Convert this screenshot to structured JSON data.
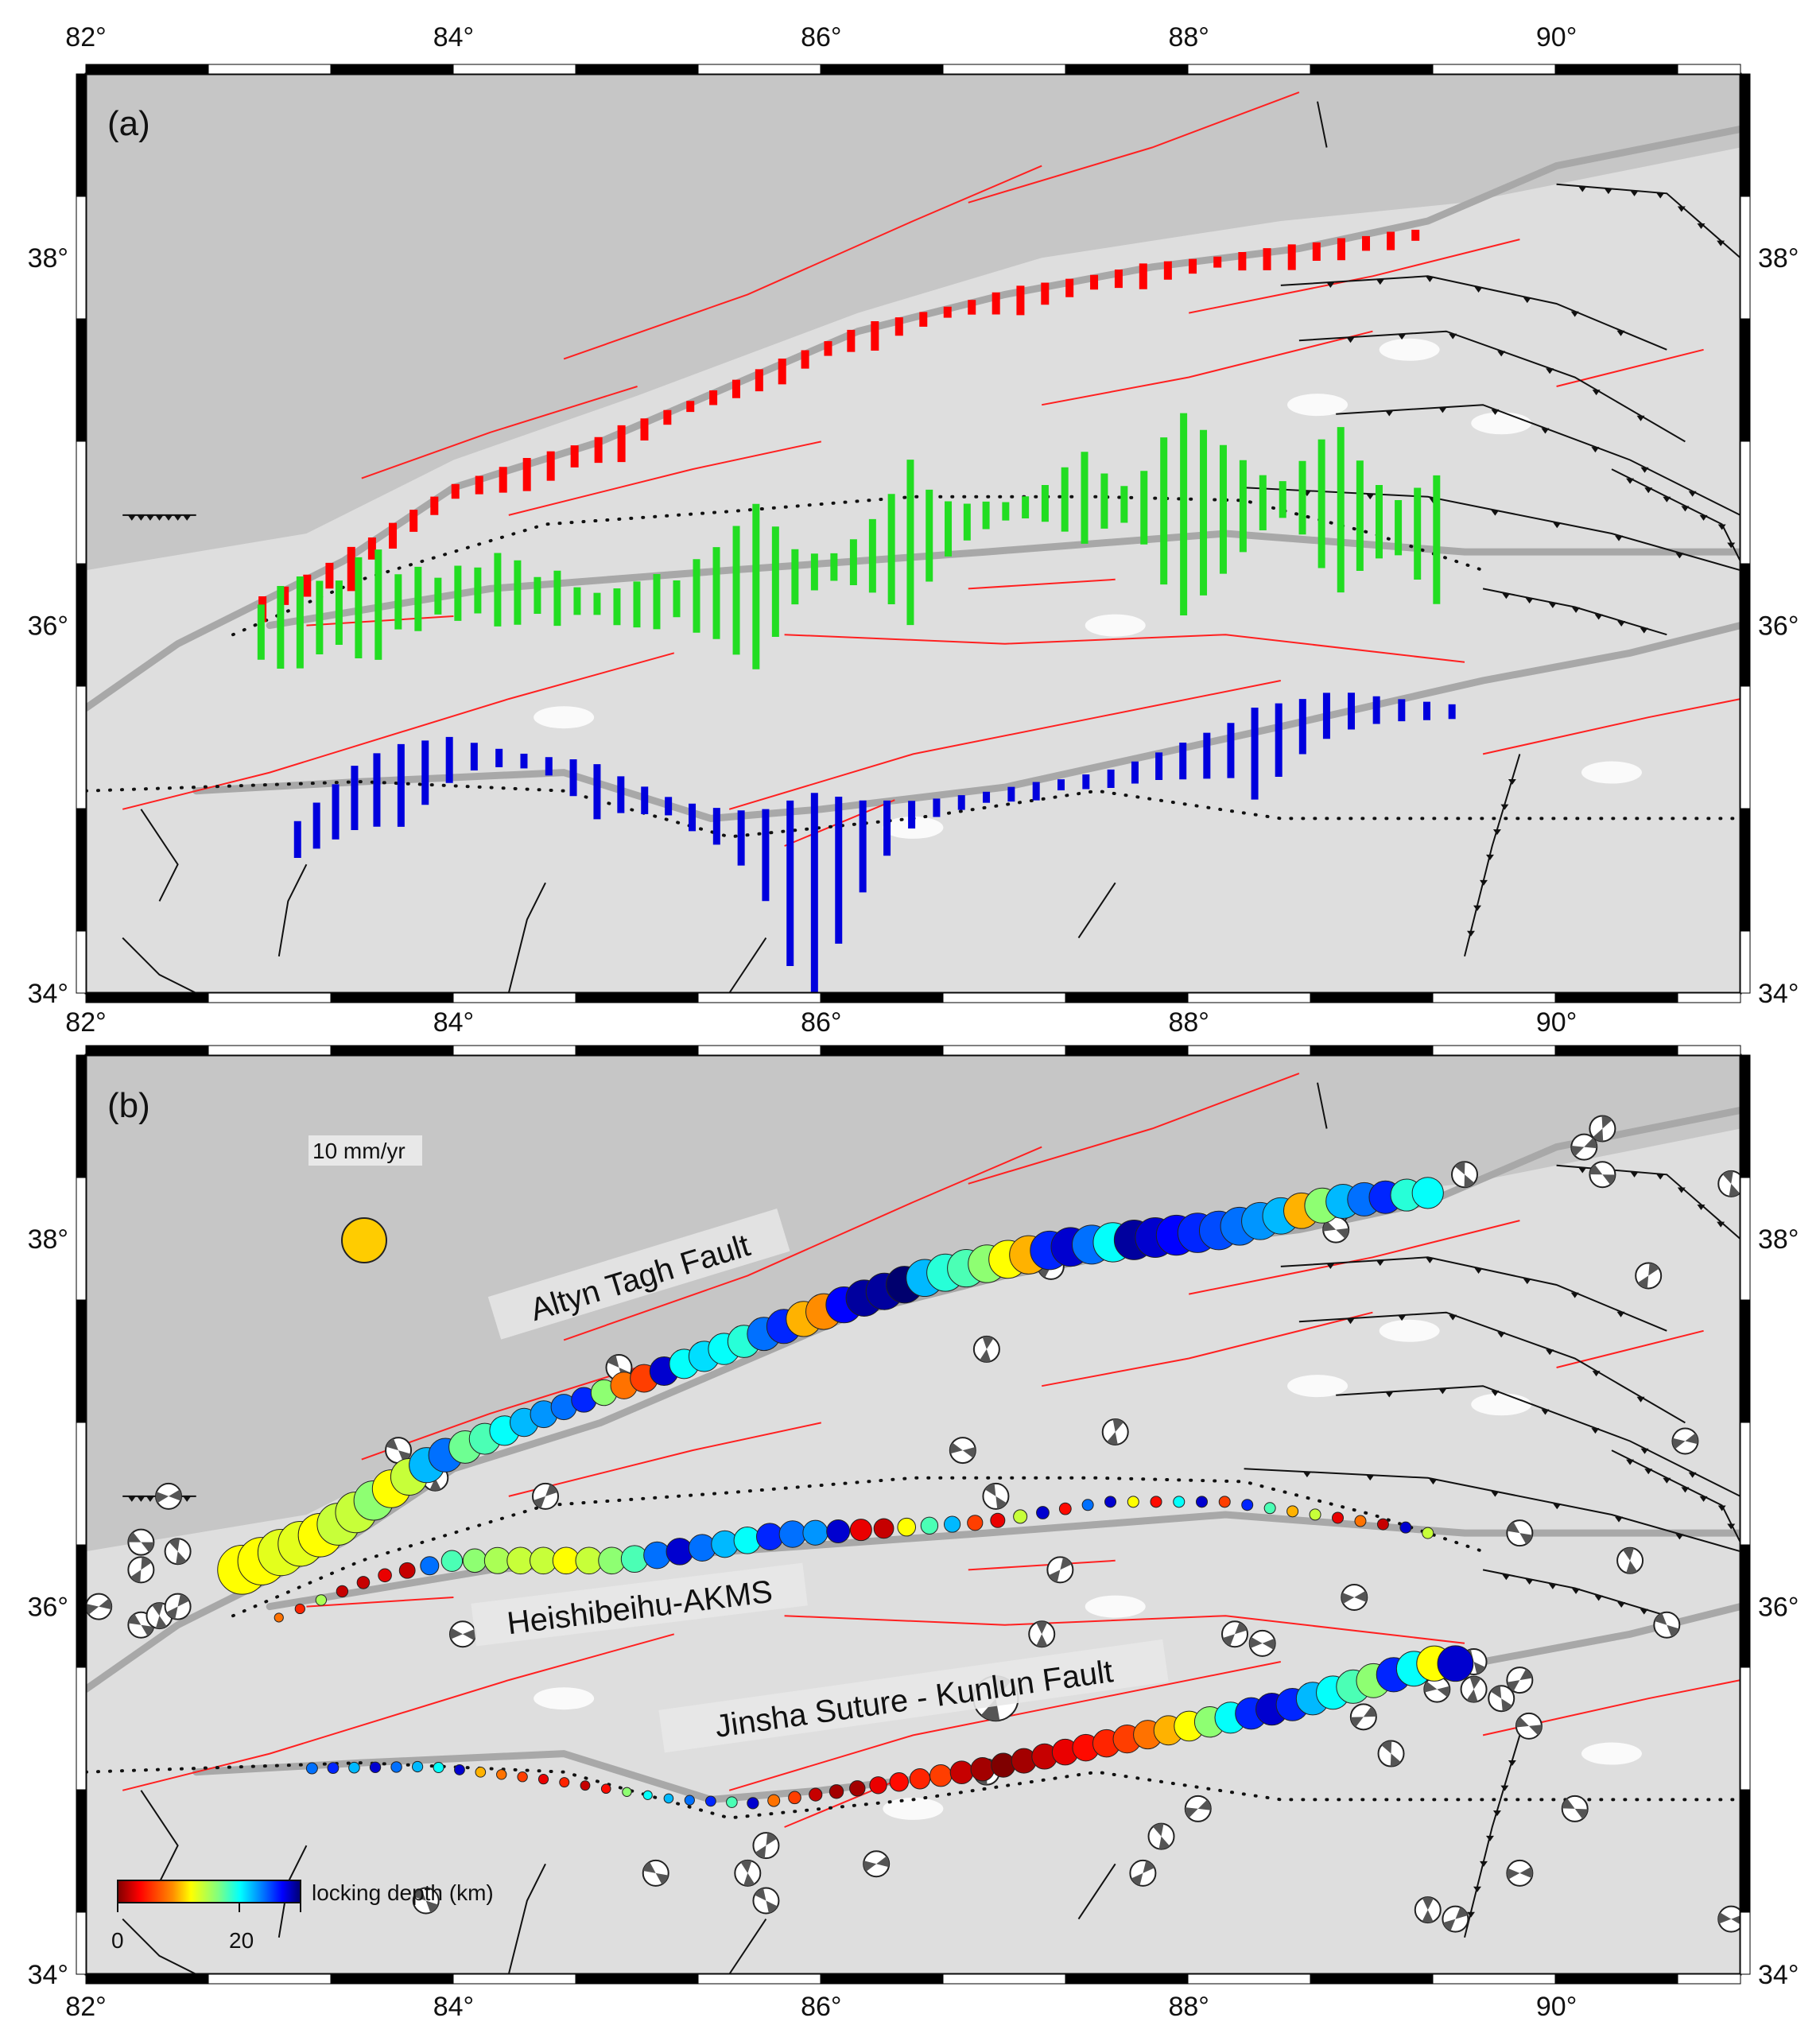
{
  "panels": [
    {
      "id": "a",
      "label": "(a)"
    },
    {
      "id": "b",
      "label": "(b)"
    }
  ],
  "axes": {
    "lon_range": [
      82,
      91
    ],
    "lat_range": [
      34,
      39
    ],
    "lon_ticks": [
      "82°",
      "84°",
      "86°",
      "88°",
      "90°"
    ],
    "lon_tick_values": [
      82,
      84,
      86,
      88,
      90
    ],
    "lat_ticks": [
      "34°",
      "36°",
      "38°"
    ],
    "lat_tick_values": [
      34,
      36,
      38
    ]
  },
  "fault_labels": {
    "altyn": "Altyn Tagh Fault",
    "heishi": "Heishibeihu-AKMS",
    "jinsha": "Jinsha Suture - Kunlun Fault"
  },
  "reference": {
    "label": "10 mm/yr",
    "rate": 10,
    "color": "#ffcc00"
  },
  "colorbar": {
    "title": "locking depth (km)",
    "tick_labels": [
      "0",
      "20"
    ],
    "tick_values": [
      0,
      20
    ],
    "range": [
      0,
      30
    ]
  },
  "colors": {
    "red_sticks": "#ff0000",
    "green_sticks": "#22dd22",
    "blue_sticks": "#0000dd",
    "active_faults": "#ff2020",
    "major_fault": "#a8a8a8",
    "basin": "#c6c6c6",
    "plateau": "#dedede"
  },
  "traces": {
    "atf": [
      [
        82.85,
        36.2
      ],
      [
        83.3,
        36.4
      ],
      [
        83.9,
        36.8
      ],
      [
        84.5,
        37.05
      ],
      [
        85.2,
        37.3
      ],
      [
        86.0,
        37.6
      ],
      [
        86.6,
        37.8
      ],
      [
        87.3,
        37.95
      ],
      [
        88.2,
        38.05
      ],
      [
        88.8,
        38.2
      ],
      [
        89.3,
        38.25
      ]
    ],
    "heishi": [
      [
        83.05,
        35.94
      ],
      [
        83.58,
        36.16
      ],
      [
        84.0,
        36.25
      ],
      [
        84.93,
        36.25
      ],
      [
        85.78,
        36.39
      ],
      [
        86.91,
        36.46
      ],
      [
        87.55,
        36.57
      ],
      [
        88.2,
        36.57
      ],
      [
        89.18,
        36.43
      ],
      [
        89.3,
        36.4
      ]
    ],
    "jinsha": [
      [
        83.23,
        35.12
      ],
      [
        83.87,
        35.13
      ],
      [
        84.5,
        35.06
      ],
      [
        85.21,
        34.95
      ],
      [
        85.64,
        34.93
      ],
      [
        86.06,
        34.99
      ],
      [
        86.91,
        35.12
      ],
      [
        87.76,
        35.3
      ],
      [
        88.54,
        35.46
      ],
      [
        89.32,
        35.69
      ],
      [
        89.45,
        35.69
      ]
    ],
    "red_a": [
      [
        82.9,
        36.1
      ],
      [
        83.4,
        36.35
      ],
      [
        84.0,
        36.75
      ],
      [
        84.8,
        37.0
      ],
      [
        85.5,
        37.3
      ],
      [
        86.2,
        37.6
      ],
      [
        87.0,
        37.8
      ],
      [
        87.8,
        37.95
      ],
      [
        88.6,
        38.05
      ],
      [
        89.3,
        38.15
      ]
    ],
    "green_a": [
      [
        82.9,
        35.95
      ],
      [
        83.5,
        36.1
      ],
      [
        84.2,
        36.2
      ],
      [
        84.9,
        36.1
      ],
      [
        85.6,
        36.2
      ],
      [
        86.2,
        36.35
      ],
      [
        86.9,
        36.6
      ],
      [
        87.4,
        36.7
      ],
      [
        88.0,
        36.6
      ],
      [
        88.6,
        36.7
      ],
      [
        89.4,
        36.45
      ]
    ],
    "blue_a": [
      [
        83.1,
        34.85
      ],
      [
        83.5,
        35.2
      ],
      [
        84.0,
        35.35
      ],
      [
        84.6,
        35.25
      ],
      [
        85.3,
        35.0
      ],
      [
        85.9,
        34.85
      ],
      [
        86.4,
        35.0
      ],
      [
        87.0,
        35.1
      ],
      [
        87.6,
        35.2
      ],
      [
        88.2,
        35.4
      ],
      [
        88.8,
        35.6
      ],
      [
        89.5,
        35.55
      ]
    ]
  },
  "sticks": {
    "red": [
      0.14,
      0.1,
      0.12,
      0.14,
      0.24,
      0.12,
      0.14,
      0.12,
      0.1,
      0.08,
      0.1,
      0.14,
      0.18,
      0.16,
      0.12,
      0.14,
      0.2,
      0.12,
      0.08,
      0.06,
      0.08,
      0.1,
      0.12,
      0.14,
      0.1,
      0.08,
      0.12,
      0.16,
      0.1,
      0.08,
      0.06,
      0.08,
      0.12,
      0.16,
      0.12,
      0.1,
      0.08,
      0.1,
      0.14,
      0.1,
      0.08,
      0.06,
      0.1,
      0.12,
      0.14,
      0.1,
      0.12,
      0.08,
      0.1,
      0.06
    ],
    "green": [
      0.3,
      0.45,
      0.5,
      0.4,
      0.35,
      0.55,
      0.6,
      0.3,
      0.35,
      0.2,
      0.3,
      0.25,
      0.4,
      0.35,
      0.2,
      0.3,
      0.15,
      0.12,
      0.2,
      0.25,
      0.3,
      0.2,
      0.4,
      0.5,
      0.7,
      0.9,
      0.6,
      0.3,
      0.2,
      0.15,
      0.25,
      0.4,
      0.6,
      0.9,
      0.5,
      0.3,
      0.2,
      0.15,
      0.1,
      0.12,
      0.2,
      0.35,
      0.5,
      0.3,
      0.2,
      0.4,
      0.8,
      1.1,
      0.9,
      0.7,
      0.5,
      0.3,
      0.2,
      0.4,
      0.7,
      0.9,
      0.6,
      0.4,
      0.3,
      0.5,
      0.7
    ],
    "blue": [
      0.2,
      0.25,
      0.3,
      0.35,
      0.4,
      0.45,
      0.35,
      0.25,
      0.15,
      0.1,
      0.08,
      0.1,
      0.2,
      0.3,
      0.2,
      0.15,
      0.1,
      0.15,
      0.2,
      0.3,
      0.5,
      0.9,
      1.1,
      0.8,
      0.5,
      0.3,
      0.15,
      0.1,
      0.08,
      0.06,
      0.08,
      0.1,
      0.06,
      0.08,
      0.1,
      0.12,
      0.15,
      0.2,
      0.25,
      0.3,
      0.5,
      0.4,
      0.3,
      0.25,
      0.2,
      0.15,
      0.12,
      0.1,
      0.08
    ]
  },
  "locking": {
    "atf": {
      "depths": [
        12,
        12,
        13,
        13,
        12,
        14,
        14,
        16,
        12,
        14,
        22,
        24,
        17,
        18,
        20,
        22,
        23,
        24,
        26,
        16,
        8,
        6,
        28,
        20,
        21,
        20,
        19,
        24,
        26,
        10,
        9,
        27,
        29,
        29,
        30,
        22,
        19,
        18,
        16,
        12,
        10,
        26,
        28,
        24,
        20,
        29,
        28,
        27,
        26,
        25,
        24,
        23,
        22,
        10,
        16,
        22,
        24,
        26,
        19,
        20
      ],
      "rate_profile": [
        [
          0,
          11
        ],
        [
          0.3,
          5.5
        ],
        [
          0.5,
          8
        ],
        [
          0.8,
          9
        ],
        [
          1,
          7
        ]
      ]
    },
    "heishi": {
      "depths": [
        8,
        5,
        15,
        2,
        2,
        3,
        2,
        24,
        18,
        16,
        15,
        14,
        14,
        12,
        14,
        16,
        18,
        24,
        28,
        24,
        22,
        20,
        26,
        24,
        23,
        28,
        3,
        2,
        12,
        18,
        22,
        6,
        3,
        14,
        28,
        4,
        24,
        28,
        12,
        4,
        20,
        28,
        6,
        26,
        18,
        10,
        14,
        3,
        8,
        2,
        28,
        14
      ],
      "rate_profile": [
        [
          0,
          2
        ],
        [
          0.1,
          3
        ],
        [
          0.2,
          6
        ],
        [
          0.45,
          6
        ],
        [
          0.55,
          4
        ],
        [
          0.7,
          2.5
        ],
        [
          1,
          2.5
        ]
      ]
    },
    "jinsha": {
      "depths": [
        24,
        26,
        22,
        28,
        24,
        22,
        20,
        28,
        10,
        8,
        6,
        3,
        5,
        2,
        4,
        16,
        20,
        22,
        24,
        26,
        18,
        28,
        8,
        6,
        2,
        1,
        1,
        3,
        4,
        5,
        6,
        2,
        1,
        0,
        1,
        2,
        3,
        4,
        5,
        6,
        8,
        10,
        12,
        16,
        20,
        26,
        28,
        26,
        22,
        20,
        18,
        16,
        26,
        20,
        12,
        28
      ],
      "rate_profile": [
        [
          0,
          2.5
        ],
        [
          0.3,
          2
        ],
        [
          0.45,
          3
        ],
        [
          0.55,
          5
        ],
        [
          0.8,
          7
        ],
        [
          1,
          8
        ]
      ]
    }
  },
  "focal_mechanisms": [
    [
      82.3,
      36.35
    ],
    [
      82.5,
      36.3
    ],
    [
      82.3,
      36.2
    ],
    [
      82.07,
      36.0
    ],
    [
      82.3,
      35.9
    ],
    [
      82.4,
      35.95
    ],
    [
      82.5,
      36.0
    ],
    [
      82.45,
      36.6
    ],
    [
      83.7,
      36.85
    ],
    [
      83.9,
      36.7
    ],
    [
      84.5,
      36.6
    ],
    [
      84.05,
      35.85
    ],
    [
      84.9,
      37.3
    ],
    [
      86.9,
      37.4
    ],
    [
      87.25,
      37.85
    ],
    [
      86.77,
      36.85
    ],
    [
      86.95,
      36.6
    ],
    [
      87.6,
      36.95
    ],
    [
      88.8,
      38.15
    ],
    [
      88.8,
      38.05
    ],
    [
      89.5,
      38.35
    ],
    [
      90.25,
      38.6
    ],
    [
      90.15,
      38.5
    ],
    [
      90.25,
      38.35
    ],
    [
      90.95,
      38.3
    ],
    [
      90.5,
      37.8
    ],
    [
      90.7,
      36.9
    ],
    [
      89.8,
      36.4
    ],
    [
      90.4,
      36.25
    ],
    [
      87.3,
      36.2
    ],
    [
      88.9,
      36.05
    ],
    [
      90.6,
      35.9
    ],
    [
      87.2,
      35.85
    ],
    [
      88.25,
      35.85
    ],
    [
      88.4,
      35.8
    ],
    [
      89.55,
      35.7
    ],
    [
      89.55,
      35.55
    ],
    [
      89.8,
      35.6
    ],
    [
      89.35,
      35.55
    ],
    [
      89.7,
      35.5
    ],
    [
      86.95,
      35.5
    ],
    [
      88.95,
      35.4
    ],
    [
      89.85,
      35.35
    ],
    [
      89.1,
      35.2
    ],
    [
      86.9,
      35.1
    ],
    [
      88.05,
      34.9
    ],
    [
      90.1,
      34.9
    ],
    [
      87.85,
      34.75
    ],
    [
      85.7,
      34.7
    ],
    [
      86.3,
      34.6
    ],
    [
      85.1,
      34.55
    ],
    [
      85.6,
      34.55
    ],
    [
      87.75,
      34.55
    ],
    [
      89.8,
      34.55
    ],
    [
      83.85,
      34.4
    ],
    [
      89.3,
      34.35
    ],
    [
      89.45,
      34.3
    ],
    [
      90.95,
      34.3
    ],
    [
      85.7,
      34.4
    ]
  ],
  "red_faults": [
    [
      [
        83.5,
        36.8
      ],
      [
        84.2,
        37.05
      ],
      [
        85.0,
        37.3
      ]
    ],
    [
      [
        84.6,
        37.45
      ],
      [
        85.6,
        37.8
      ],
      [
        86.5,
        38.2
      ],
      [
        87.2,
        38.5
      ]
    ],
    [
      [
        86.8,
        38.3
      ],
      [
        87.8,
        38.6
      ],
      [
        88.6,
        38.9
      ]
    ],
    [
      [
        88.0,
        37.7
      ],
      [
        89.0,
        37.9
      ],
      [
        89.8,
        38.1
      ]
    ],
    [
      [
        87.2,
        37.2
      ],
      [
        88.0,
        37.35
      ],
      [
        89.0,
        37.6
      ]
    ],
    [
      [
        84.3,
        36.6
      ],
      [
        85.3,
        36.85
      ],
      [
        86.0,
        37.0
      ]
    ],
    [
      [
        82.2,
        35.0
      ],
      [
        83.0,
        35.2
      ],
      [
        84.3,
        35.6
      ],
      [
        85.2,
        35.85
      ]
    ],
    [
      [
        85.5,
        35.0
      ],
      [
        86.5,
        35.3
      ],
      [
        87.5,
        35.5
      ],
      [
        88.5,
        35.7
      ]
    ],
    [
      [
        85.8,
        35.95
      ],
      [
        87.0,
        35.9
      ],
      [
        88.2,
        35.95
      ],
      [
        89.5,
        35.8
      ]
    ],
    [
      [
        83.2,
        36.0
      ],
      [
        84.0,
        36.05
      ]
    ],
    [
      [
        90.0,
        37.3
      ],
      [
        90.8,
        37.5
      ]
    ],
    [
      [
        89.6,
        35.3
      ],
      [
        90.5,
        35.5
      ],
      [
        91.0,
        35.6
      ]
    ],
    [
      [
        86.8,
        36.2
      ],
      [
        87.6,
        36.25
      ]
    ],
    [
      [
        85.8,
        34.8
      ],
      [
        86.4,
        35.05
      ]
    ]
  ],
  "gray_faults": [
    [
      [
        82.0,
        35.55
      ],
      [
        82.5,
        35.9
      ],
      [
        82.9,
        36.1
      ],
      [
        83.4,
        36.35
      ],
      [
        84.0,
        36.75
      ],
      [
        84.8,
        37.0
      ],
      [
        85.5,
        37.3
      ],
      [
        86.2,
        37.6
      ],
      [
        87.0,
        37.8
      ],
      [
        87.8,
        37.95
      ],
      [
        88.6,
        38.05
      ],
      [
        89.3,
        38.2
      ],
      [
        90.0,
        38.5
      ],
      [
        91.0,
        38.7
      ]
    ],
    [
      [
        83.0,
        36.0
      ],
      [
        84.2,
        36.2
      ],
      [
        85.5,
        36.3
      ],
      [
        86.9,
        36.4
      ],
      [
        88.2,
        36.5
      ],
      [
        89.5,
        36.4
      ],
      [
        91.0,
        36.4
      ]
    ],
    [
      [
        82.6,
        35.1
      ],
      [
        83.5,
        35.15
      ],
      [
        84.6,
        35.2
      ],
      [
        85.4,
        34.95
      ],
      [
        86.0,
        35.0
      ],
      [
        87.0,
        35.12
      ],
      [
        88.5,
        35.45
      ],
      [
        89.6,
        35.7
      ],
      [
        90.4,
        35.85
      ],
      [
        91.0,
        36.0
      ]
    ]
  ],
  "dotted_lines": [
    [
      [
        82.0,
        35.1
      ],
      [
        83.5,
        35.15
      ],
      [
        84.6,
        35.1
      ],
      [
        85.5,
        34.85
      ],
      [
        86.5,
        34.95
      ],
      [
        87.5,
        35.1
      ],
      [
        88.5,
        34.95
      ],
      [
        89.5,
        34.95
      ],
      [
        90.3,
        34.95
      ],
      [
        91.0,
        34.95
      ]
    ],
    [
      [
        82.8,
        35.95
      ],
      [
        83.5,
        36.25
      ],
      [
        84.5,
        36.55
      ],
      [
        85.5,
        36.62
      ],
      [
        86.5,
        36.7
      ],
      [
        87.5,
        36.7
      ],
      [
        88.3,
        36.68
      ],
      [
        89.0,
        36.5
      ],
      [
        89.6,
        36.3
      ]
    ]
  ],
  "thrusts": [
    [
      [
        88.5,
        37.85
      ],
      [
        89.3,
        37.9
      ],
      [
        90.0,
        37.75
      ],
      [
        90.6,
        37.5
      ]
    ],
    [
      [
        88.6,
        37.55
      ],
      [
        89.4,
        37.6
      ],
      [
        90.1,
        37.35
      ],
      [
        90.7,
        37.0
      ]
    ],
    [
      [
        88.8,
        37.15
      ],
      [
        89.6,
        37.2
      ],
      [
        90.4,
        36.9
      ],
      [
        91.0,
        36.6
      ]
    ],
    [
      [
        88.3,
        36.75
      ],
      [
        89.3,
        36.7
      ],
      [
        90.3,
        36.5
      ],
      [
        91.0,
        36.3
      ]
    ],
    [
      [
        90.0,
        38.4
      ],
      [
        90.6,
        38.35
      ],
      [
        91.0,
        38.0
      ]
    ],
    [
      [
        90.3,
        36.85
      ],
      [
        90.9,
        36.55
      ],
      [
        91.0,
        36.35
      ]
    ],
    [
      [
        82.2,
        36.6
      ],
      [
        82.6,
        36.6
      ]
    ],
    [
      [
        89.6,
        36.2
      ],
      [
        90.1,
        36.1
      ],
      [
        90.6,
        35.95
      ]
    ],
    [
      [
        89.8,
        35.3
      ],
      [
        89.65,
        34.8
      ],
      [
        89.5,
        34.2
      ]
    ]
  ],
  "black_rivers": [
    [
      [
        82.2,
        34.3
      ],
      [
        82.4,
        34.1
      ],
      [
        82.6,
        34.0
      ]
    ],
    [
      [
        83.05,
        34.2
      ],
      [
        83.1,
        34.5
      ],
      [
        83.2,
        34.7
      ]
    ],
    [
      [
        84.3,
        34.0
      ],
      [
        84.4,
        34.4
      ],
      [
        84.5,
        34.6
      ]
    ],
    [
      [
        85.5,
        34.0
      ],
      [
        85.7,
        34.3
      ]
    ],
    [
      [
        87.4,
        34.3
      ],
      [
        87.6,
        34.6
      ]
    ],
    [
      [
        88.7,
        38.85
      ],
      [
        88.75,
        38.6
      ]
    ],
    [
      [
        82.3,
        35.0
      ],
      [
        82.5,
        34.7
      ],
      [
        82.4,
        34.5
      ]
    ]
  ]
}
